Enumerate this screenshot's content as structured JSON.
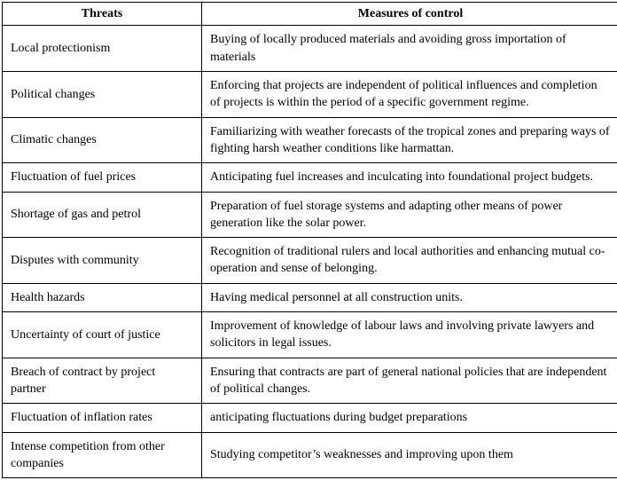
{
  "colors": {
    "border": "#000000",
    "text": "#000000",
    "background": "#ffffff"
  },
  "table": {
    "headers": {
      "threats": "Threats",
      "measures": "Measures of control"
    },
    "rows": [
      {
        "threat": "Local protectionism",
        "measure": "Buying of locally produced materials and avoiding gross importation of materials"
      },
      {
        "threat": "Political changes",
        "measure": "Enforcing that projects are independent of political influences and completion of projects is within the period of a specific government regime."
      },
      {
        "threat": "Climatic changes",
        "measure": "Familiarizing with weather forecasts of the tropical zones and preparing ways of fighting harsh weather conditions like harmattan."
      },
      {
        "threat": "Fluctuation of fuel prices",
        "measure": "Anticipating fuel increases and inculcating into foundational project budgets."
      },
      {
        "threat": "Shortage of gas and petrol",
        "measure": "Preparation of fuel storage systems and adapting other means of power generation like the solar power."
      },
      {
        "threat": "Disputes with community",
        "measure": "Recognition of traditional rulers and local authorities and enhancing mutual co-operation and sense of belonging."
      },
      {
        "threat": "Health hazards",
        "measure": "Having medical personnel at all construction units."
      },
      {
        "threat": "Uncertainty of court of justice",
        "measure": "Improvement of knowledge of labour laws and involving private lawyers and solicitors in legal issues."
      },
      {
        "threat": "Breach of contract by project partner",
        "measure": "Ensuring that contracts are part of general national policies that are independent of political changes."
      },
      {
        "threat": "Fluctuation of inflation rates",
        "measure": "anticipating fluctuations during budget preparations"
      },
      {
        "threat": "Intense competition from other companies",
        "measure": "Studying competitor’s weaknesses and improving upon them"
      }
    ]
  }
}
